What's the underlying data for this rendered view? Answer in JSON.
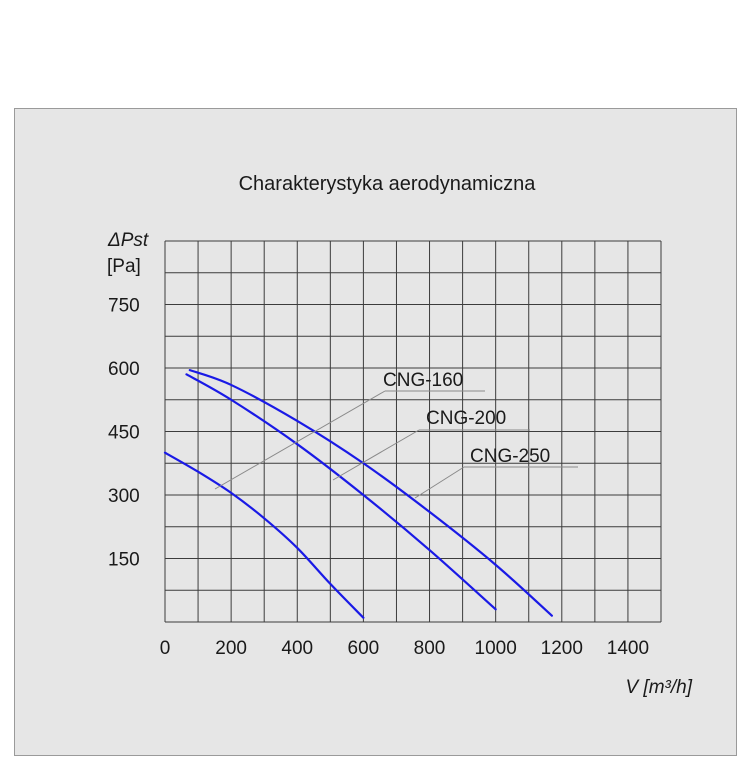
{
  "chart_data": {
    "type": "line",
    "title": "Charakterystyka aerodynamiczna",
    "ylabel_symbol": "ΔPst",
    "ylabel_unit": "[Pa]",
    "xlabel": "V [m³/h]",
    "xlim": [
      0,
      1500
    ],
    "ylim": [
      0,
      900
    ],
    "x_ticks": [
      0,
      200,
      400,
      600,
      800,
      1000,
      1200,
      1400
    ],
    "y_ticks": [
      150,
      300,
      450,
      600,
      750
    ],
    "grid": true,
    "series": [
      {
        "name": "CNG-160",
        "color": "#1a1ae6",
        "points": [
          [
            0,
            400
          ],
          [
            100,
            355
          ],
          [
            200,
            305
          ],
          [
            300,
            245
          ],
          [
            400,
            175
          ],
          [
            500,
            90
          ],
          [
            600,
            10
          ]
        ]
      },
      {
        "name": "CNG-200",
        "color": "#1a1ae6",
        "points": [
          [
            65,
            585
          ],
          [
            200,
            525
          ],
          [
            400,
            420
          ],
          [
            600,
            300
          ],
          [
            800,
            170
          ],
          [
            1000,
            30
          ]
        ]
      },
      {
        "name": "CNG-250",
        "color": "#1a1ae6",
        "points": [
          [
            75,
            595
          ],
          [
            200,
            560
          ],
          [
            400,
            475
          ],
          [
            600,
            375
          ],
          [
            800,
            260
          ],
          [
            1000,
            135
          ],
          [
            1170,
            15
          ]
        ]
      }
    ]
  }
}
